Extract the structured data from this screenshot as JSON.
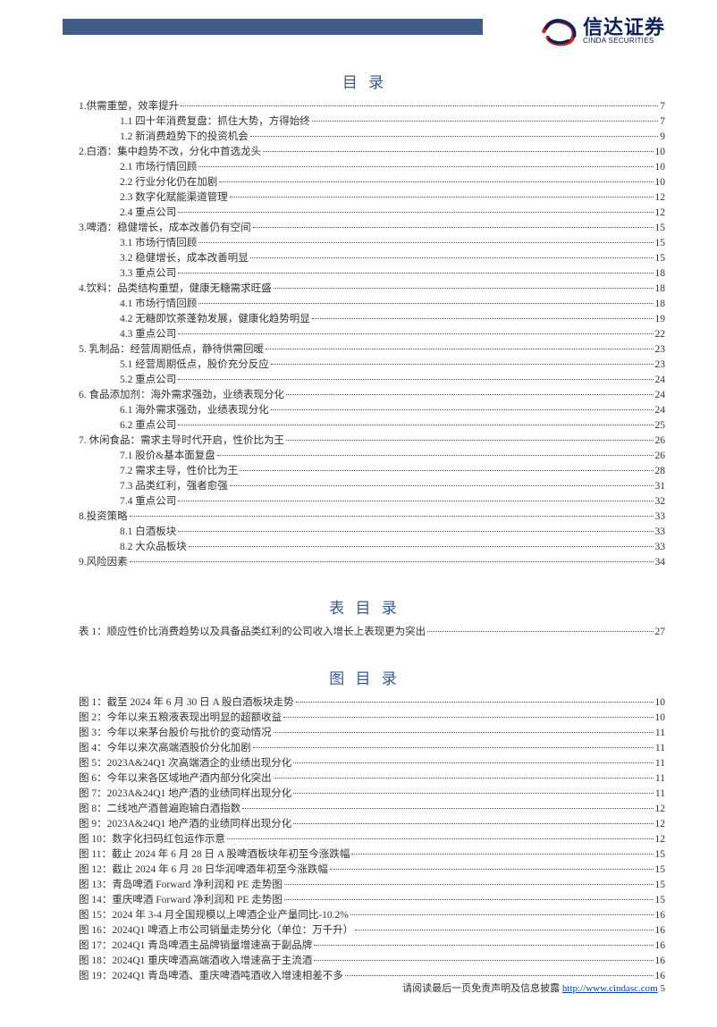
{
  "logo": {
    "cn": "信达证券",
    "en": "CINDA SECURITIES"
  },
  "toc_title": "目 录",
  "toc": [
    {
      "level": 0,
      "label": "1.供需重塑，效率提升",
      "page": "7"
    },
    {
      "level": 1,
      "label": "1.1 四十年消费复盘：抓住大势，方得始终",
      "page": "7"
    },
    {
      "level": 1,
      "label": "1.2 新消费趋势下的投资机会",
      "page": "9"
    },
    {
      "level": 0,
      "label": "2.白酒：集中趋势不改，分化中首选龙头",
      "page": "10"
    },
    {
      "level": 1,
      "label": "2.1 市场行情回顾",
      "page": "10"
    },
    {
      "level": 1,
      "label": "2.2 行业分化仍在加剧",
      "page": "10"
    },
    {
      "level": 1,
      "label": "2.3 数字化赋能渠道管理",
      "page": "12"
    },
    {
      "level": 1,
      "label": "2.4 重点公司",
      "page": "12"
    },
    {
      "level": 0,
      "label": "3.啤酒：稳健增长，成本改善仍有空间",
      "page": "15"
    },
    {
      "level": 1,
      "label": "3.1 市场行情回顾",
      "page": "15"
    },
    {
      "level": 1,
      "label": "3.2 稳健增长，成本改善明显",
      "page": "15"
    },
    {
      "level": 1,
      "label": "3.3 重点公司",
      "page": "18"
    },
    {
      "level": 0,
      "label": "4.饮料：品类结构重塑，健康无糖需求旺盛",
      "page": "18"
    },
    {
      "level": 1,
      "label": "4.1 市场行情回顾",
      "page": "18"
    },
    {
      "level": 1,
      "label": "4.2 无糖即饮茶蓬勃发展，健康化趋势明显",
      "page": "19"
    },
    {
      "level": 1,
      "label": "4.3 重点公司",
      "page": "22"
    },
    {
      "level": 0,
      "label": "5. 乳制品：经营周期低点，静待供需回暖",
      "page": "23"
    },
    {
      "level": 1,
      "label": "5.1 经营周期低点，股价充分反应",
      "page": "23"
    },
    {
      "level": 1,
      "label": "5.2 重点公司",
      "page": "24"
    },
    {
      "level": 0,
      "label": "6. 食品添加剂：海外需求强劲，业绩表现分化",
      "page": "24"
    },
    {
      "level": 1,
      "label": "6.1 海外需求强劲，业绩表现分化",
      "page": "24"
    },
    {
      "level": 1,
      "label": "6.2 重点公司",
      "page": "25"
    },
    {
      "level": 0,
      "label": "7. 休闲食品：需求主导时代开启，性价比为王",
      "page": "26"
    },
    {
      "level": 1,
      "label": "7.1 股价&基本面复盘",
      "page": "26"
    },
    {
      "level": 1,
      "label": "7.2 需求主导，性价比为王",
      "page": "28"
    },
    {
      "level": 1,
      "label": "7.3 品类红利，强者愈强",
      "page": "31"
    },
    {
      "level": 1,
      "label": "7.4 重点公司",
      "page": "32"
    },
    {
      "level": 0,
      "label": "8.投资策略",
      "page": "33"
    },
    {
      "level": 1,
      "label": "8.1 白酒板块",
      "page": "33"
    },
    {
      "level": 1,
      "label": "8.2 大众品板块",
      "page": "33"
    },
    {
      "level": 0,
      "label": "9.风险因素",
      "page": "34"
    }
  ],
  "tables_title": "表 目 录",
  "tables": [
    {
      "label": "表 1：顺应性价比消费趋势以及具备品类红利的公司收入增长上表现更为突出",
      "page": "27"
    }
  ],
  "figures_title": "图 目 录",
  "figures": [
    {
      "label": "图 1：截至 2024 年 6 月 30 日 A 股白酒板块走势",
      "page": "10"
    },
    {
      "label": "图 2：今年以来五粮液表现出明显的超额收益",
      "page": "10"
    },
    {
      "label": "图 3：今年以来茅台股价与批价的变动情况",
      "page": "11"
    },
    {
      "label": "图 4：今年以来次高端酒股价分化加剧",
      "page": "11"
    },
    {
      "label": "图 5：2023A&24Q1 次高端酒企的业绩出现分化",
      "page": "11"
    },
    {
      "label": "图 6：今年以来各区域地产酒内部分化突出",
      "page": "11"
    },
    {
      "label": "图 7：2023A&24Q1 地产酒的业绩同样出现分化",
      "page": "11"
    },
    {
      "label": "图 8：二线地产酒普遍跑输白酒指数",
      "page": "12"
    },
    {
      "label": "图 9：2023A&24Q1 地产酒的业绩同样出现分化",
      "page": "12"
    },
    {
      "label": "图 10：数字化扫码红包运作示意",
      "page": "12"
    },
    {
      "label": "图 11：截止 2024 年 6 月 28 日 A 股啤酒板块年初至今涨跌幅",
      "page": "15"
    },
    {
      "label": "图 12：截止 2024 年 6 月 28 日华润啤酒年初至今涨跌幅",
      "page": "15"
    },
    {
      "label": "图 13：青岛啤酒 Forward 净利润和 PE 走势图",
      "page": "15"
    },
    {
      "label": "图 14：重庆啤酒 Forward 净利润和 PE 走势图",
      "page": "15"
    },
    {
      "label": "图 15：2024 年 3-4 月全国规模以上啤酒企业产量同比-10.2%",
      "page": "16"
    },
    {
      "label": "图 16：2024Q1 啤酒上市公司销量走势分化（单位：万千升）",
      "page": "16"
    },
    {
      "label": "图 17：2024Q1 青岛啤酒主品牌销量增速高于副品牌",
      "page": "16"
    },
    {
      "label": "图 18：2024Q1 重庆啤酒高端酒收入增速高于主流酒",
      "page": "16"
    },
    {
      "label": "图 19：2024Q1 青岛啤酒、重庆啤酒吨酒收入增速相差不多",
      "page": "16"
    }
  ],
  "footer": {
    "text": "请阅读最后一页免责声明及信息披露 ",
    "url": "http://www.cindasc.com",
    "page_num": " 5"
  },
  "colors": {
    "header_bar": "#3f5d87",
    "title_color": "#355a8f",
    "logo_navy": "#0a1f5c",
    "logo_red": "#c92020",
    "link_color": "#0645ad"
  }
}
